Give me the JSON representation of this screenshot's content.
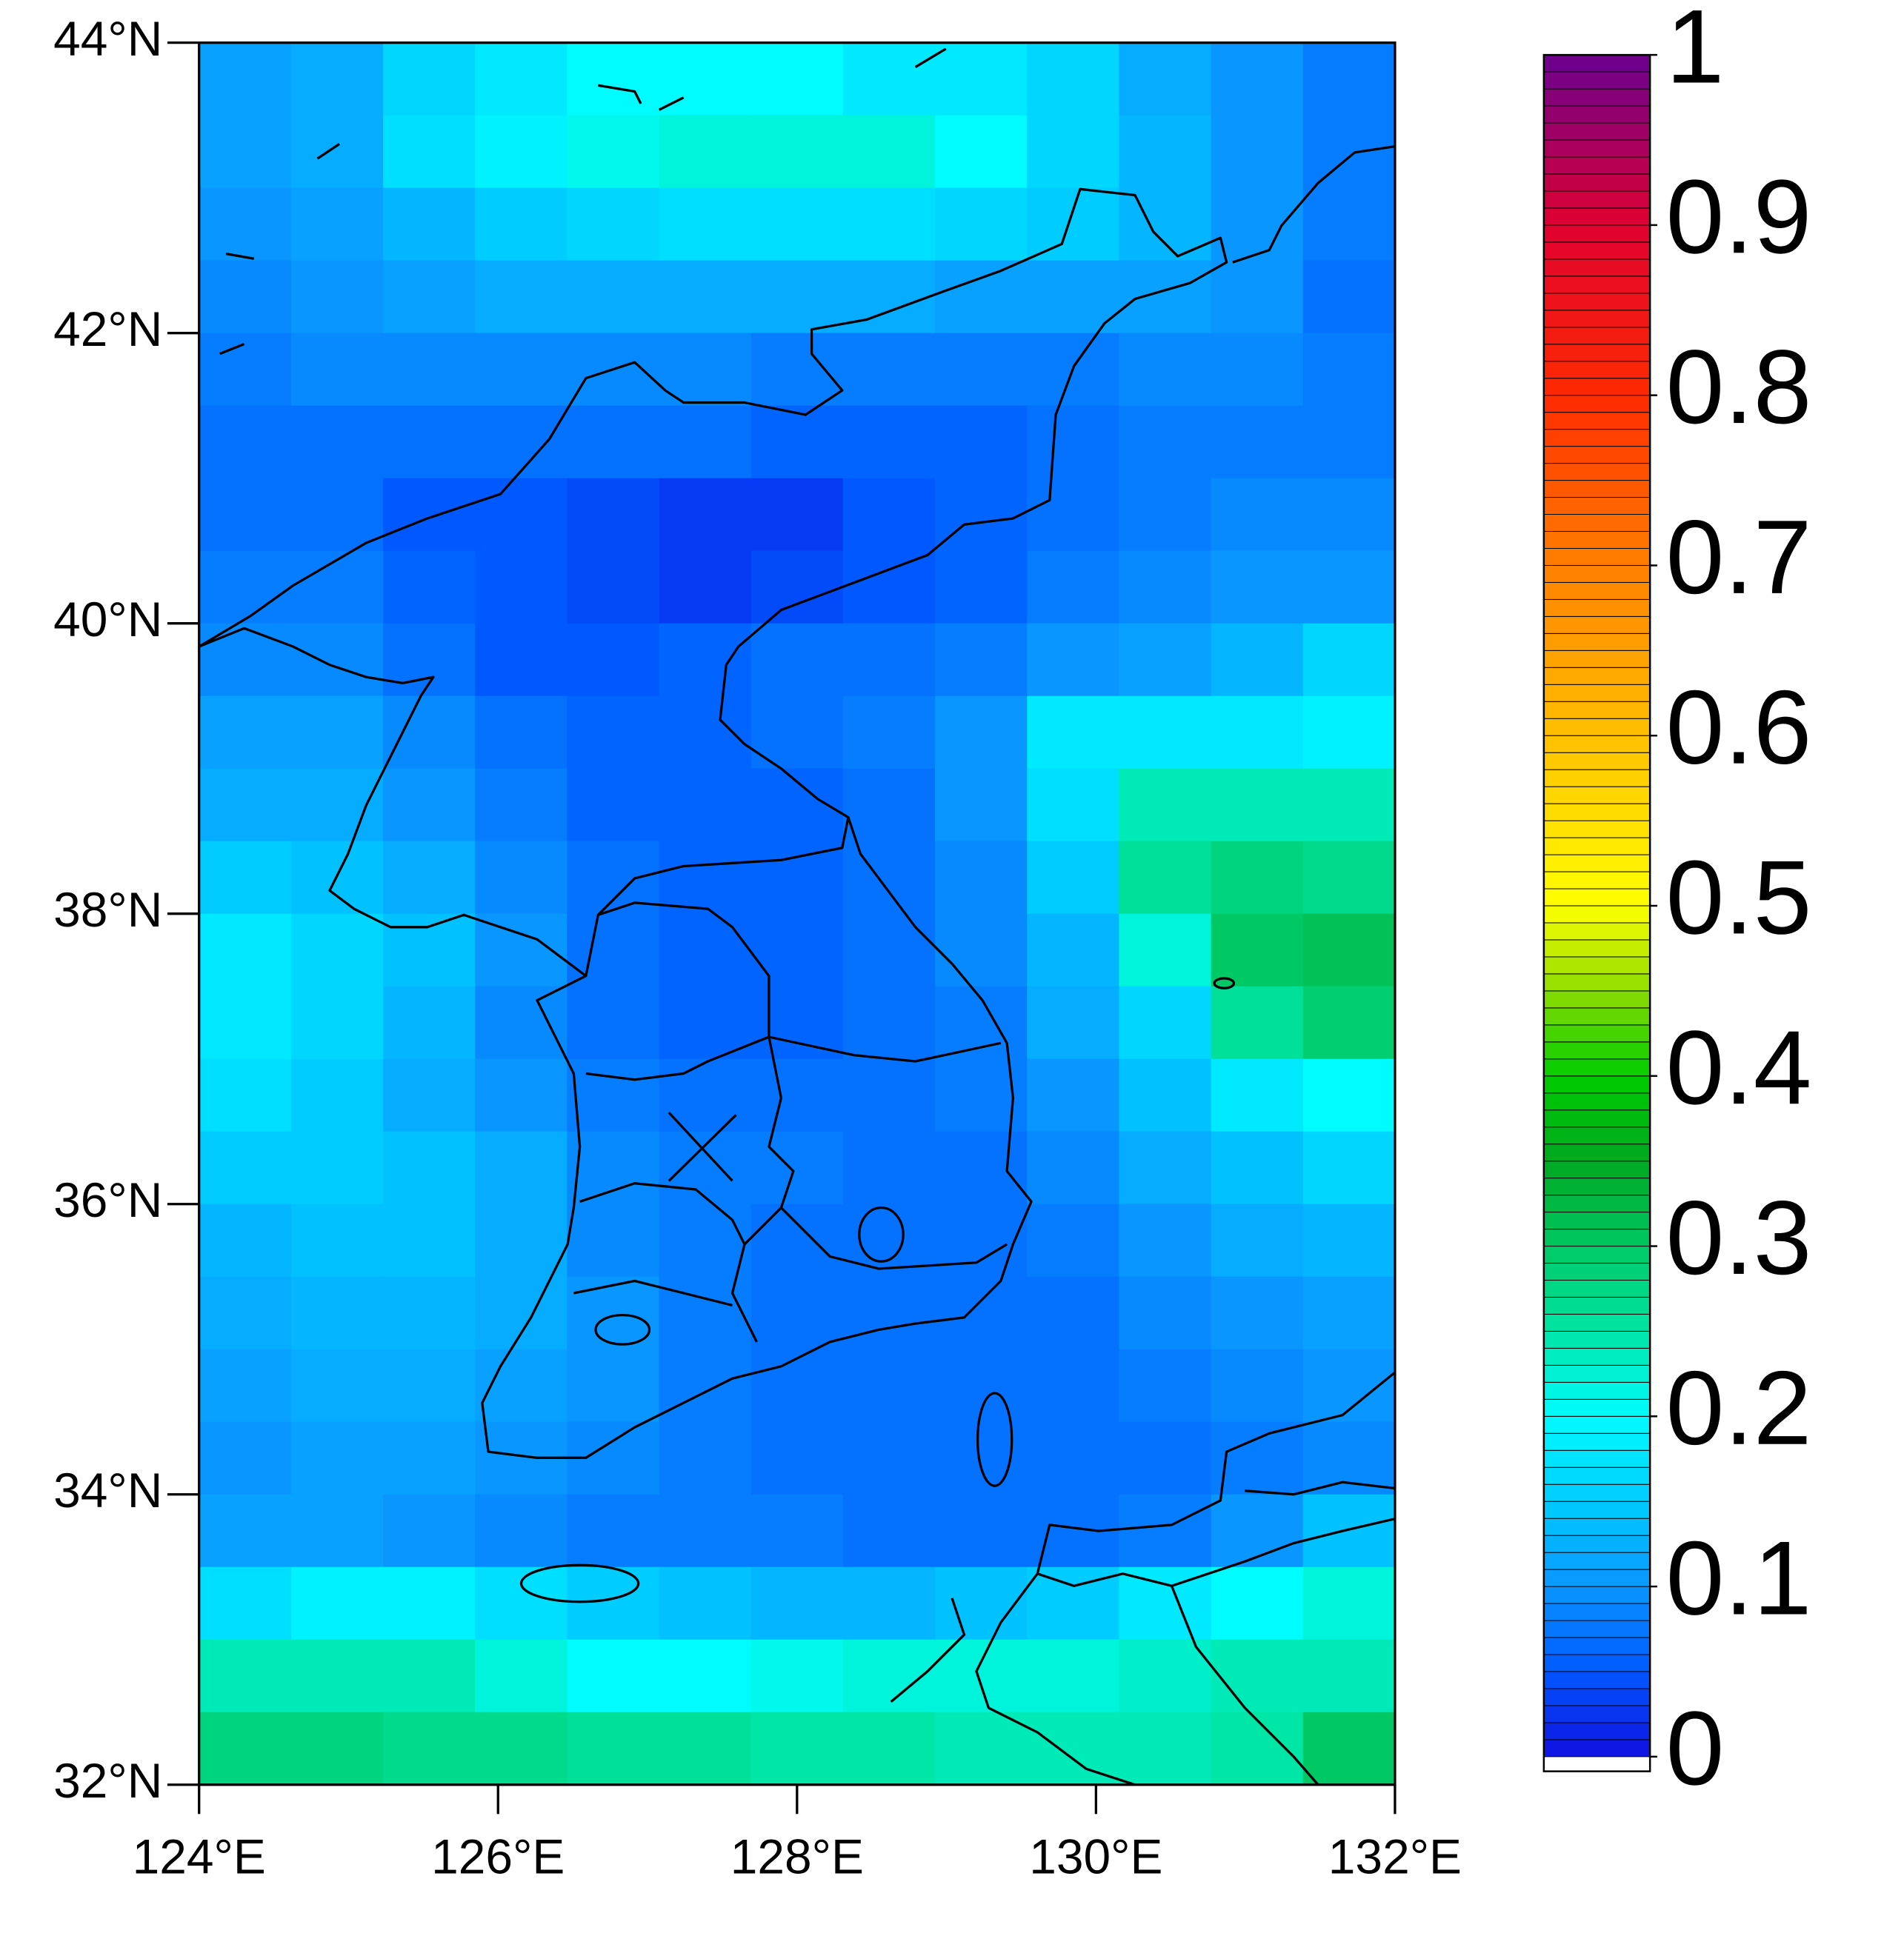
{
  "chart_data": {
    "type": "heatmap",
    "xlim": [
      124,
      132
    ],
    "ylim": [
      32,
      44
    ],
    "xticks": [
      {
        "value": 124,
        "label": "124°E"
      },
      {
        "value": 126,
        "label": "126°E"
      },
      {
        "value": 128,
        "label": "128°E"
      },
      {
        "value": 130,
        "label": "130°E"
      },
      {
        "value": 132,
        "label": "132°E"
      }
    ],
    "yticks": [
      {
        "value": 32,
        "label": "32°N"
      },
      {
        "value": 34,
        "label": "34°N"
      },
      {
        "value": 36,
        "label": "36°N"
      },
      {
        "value": 38,
        "label": "38°N"
      },
      {
        "value": 40,
        "label": "40°N"
      },
      {
        "value": 42,
        "label": "42°N"
      },
      {
        "value": 44,
        "label": "44°N"
      }
    ],
    "zlim": [
      0,
      1
    ],
    "zticks": [
      0,
      0.1,
      0.2,
      0.3,
      0.4,
      0.5,
      0.6,
      0.7,
      0.8,
      0.9,
      1
    ],
    "colormap": [
      {
        "value": 0,
        "color": "#1010e0"
      },
      {
        "value": 0.05,
        "color": "#0058ff"
      },
      {
        "value": 0.1,
        "color": "#0a96ff"
      },
      {
        "value": 0.15,
        "color": "#00ccff"
      },
      {
        "value": 0.2,
        "color": "#00fcff"
      },
      {
        "value": 0.25,
        "color": "#00e6a6"
      },
      {
        "value": 0.3,
        "color": "#00c864"
      },
      {
        "value": 0.35,
        "color": "#00a820"
      },
      {
        "value": 0.4,
        "color": "#00cc00"
      },
      {
        "value": 0.45,
        "color": "#8cdc00"
      },
      {
        "value": 0.5,
        "color": "#ffff00"
      },
      {
        "value": 0.6,
        "color": "#ffc000"
      },
      {
        "value": 0.7,
        "color": "#ff8000"
      },
      {
        "value": 0.8,
        "color": "#ff2a00"
      },
      {
        "value": 0.9,
        "color": "#e00030"
      },
      {
        "value": 1,
        "color": "#6a0090"
      }
    ],
    "z": [
      [
        0.11,
        0.12,
        0.16,
        0.18,
        0.2,
        0.2,
        0.2,
        0.18,
        0.18,
        0.16,
        0.12,
        0.1,
        0.08
      ],
      [
        0.11,
        0.12,
        0.17,
        0.19,
        0.21,
        0.22,
        0.22,
        0.22,
        0.2,
        0.16,
        0.13,
        0.1,
        0.08
      ],
      [
        0.1,
        0.11,
        0.13,
        0.15,
        0.16,
        0.17,
        0.17,
        0.17,
        0.16,
        0.15,
        0.13,
        0.1,
        0.08
      ],
      [
        0.09,
        0.1,
        0.11,
        0.12,
        0.12,
        0.12,
        0.12,
        0.12,
        0.11,
        0.11,
        0.11,
        0.1,
        0.07
      ],
      [
        0.08,
        0.09,
        0.09,
        0.09,
        0.09,
        0.09,
        0.08,
        0.08,
        0.08,
        0.08,
        0.09,
        0.09,
        0.08
      ],
      [
        0.07,
        0.07,
        0.07,
        0.07,
        0.07,
        0.07,
        0.06,
        0.06,
        0.06,
        0.07,
        0.08,
        0.08,
        0.08
      ],
      [
        0.07,
        0.07,
        0.05,
        0.05,
        0.04,
        0.03,
        0.03,
        0.05,
        0.06,
        0.07,
        0.08,
        0.09,
        0.09
      ],
      [
        0.08,
        0.08,
        0.06,
        0.05,
        0.04,
        0.03,
        0.04,
        0.05,
        0.06,
        0.08,
        0.09,
        0.1,
        0.1
      ],
      [
        0.09,
        0.09,
        0.07,
        0.05,
        0.05,
        0.06,
        0.07,
        0.07,
        0.08,
        0.1,
        0.11,
        0.13,
        0.16
      ],
      [
        0.11,
        0.11,
        0.09,
        0.07,
        0.06,
        0.06,
        0.07,
        0.08,
        0.1,
        0.18,
        0.18,
        0.18,
        0.19
      ],
      [
        0.12,
        0.12,
        0.1,
        0.08,
        0.06,
        0.06,
        0.06,
        0.07,
        0.1,
        0.17,
        0.24,
        0.24,
        0.24
      ],
      [
        0.15,
        0.14,
        0.12,
        0.09,
        0.07,
        0.06,
        0.06,
        0.07,
        0.09,
        0.15,
        0.26,
        0.28,
        0.27
      ],
      [
        0.18,
        0.16,
        0.14,
        0.1,
        0.07,
        0.06,
        0.06,
        0.07,
        0.09,
        0.13,
        0.22,
        0.3,
        0.31
      ],
      [
        0.18,
        0.16,
        0.13,
        0.09,
        0.07,
        0.06,
        0.06,
        0.07,
        0.08,
        0.12,
        0.16,
        0.26,
        0.29
      ],
      [
        0.17,
        0.15,
        0.12,
        0.1,
        0.08,
        0.07,
        0.07,
        0.07,
        0.08,
        0.1,
        0.14,
        0.18,
        0.2
      ],
      [
        0.15,
        0.15,
        0.14,
        0.12,
        0.09,
        0.08,
        0.08,
        0.07,
        0.07,
        0.09,
        0.12,
        0.14,
        0.16
      ],
      [
        0.13,
        0.14,
        0.14,
        0.12,
        0.09,
        0.08,
        0.07,
        0.07,
        0.07,
        0.08,
        0.1,
        0.12,
        0.13
      ],
      [
        0.12,
        0.13,
        0.13,
        0.12,
        0.1,
        0.08,
        0.07,
        0.07,
        0.07,
        0.07,
        0.09,
        0.1,
        0.11
      ],
      [
        0.11,
        0.12,
        0.12,
        0.11,
        0.1,
        0.08,
        0.07,
        0.07,
        0.07,
        0.07,
        0.08,
        0.09,
        0.1
      ],
      [
        0.1,
        0.11,
        0.11,
        0.1,
        0.09,
        0.08,
        0.07,
        0.07,
        0.07,
        0.07,
        0.07,
        0.08,
        0.09
      ],
      [
        0.11,
        0.11,
        0.1,
        0.09,
        0.08,
        0.08,
        0.08,
        0.07,
        0.07,
        0.07,
        0.08,
        0.1,
        0.14
      ],
      [
        0.17,
        0.19,
        0.19,
        0.17,
        0.15,
        0.14,
        0.13,
        0.13,
        0.14,
        0.15,
        0.18,
        0.2,
        0.22
      ],
      [
        0.24,
        0.24,
        0.24,
        0.22,
        0.2,
        0.2,
        0.21,
        0.22,
        0.22,
        0.22,
        0.23,
        0.24,
        0.24
      ],
      [
        0.28,
        0.28,
        0.27,
        0.27,
        0.26,
        0.26,
        0.25,
        0.25,
        0.24,
        0.24,
        0.24,
        0.25,
        0.3
      ]
    ]
  }
}
